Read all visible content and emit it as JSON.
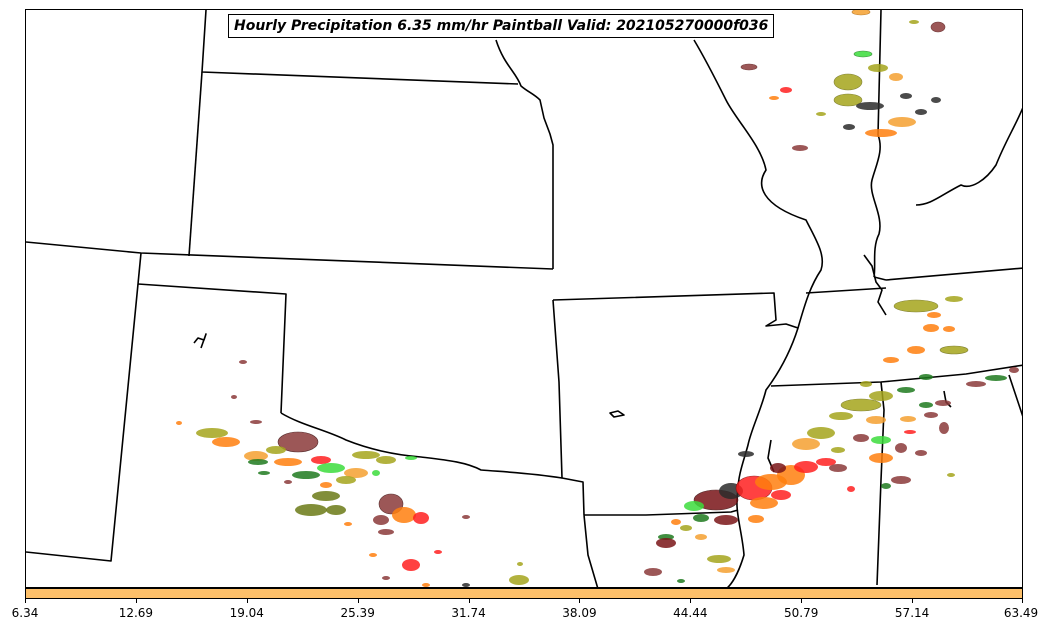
{
  "title": "Hourly Precipitation 6.35 mm/hr Paintball Valid: 202105270000f036",
  "colorbar": {
    "color": "#fdc06a",
    "ticks": [
      "6.34",
      "12.69",
      "19.04",
      "25.39",
      "31.74",
      "38.09",
      "44.44",
      "50.79",
      "57.14",
      "63.49"
    ]
  },
  "chart_data": {
    "type": "map",
    "map_type": "paintball",
    "region": "South-central United States (state boundaries)",
    "threshold_mm_per_hr": 6.35,
    "valid": "202105270000f036",
    "colorbar_range": [
      6.34,
      63.49
    ],
    "member_colors": [
      "#7a1518",
      "#c0392b",
      "#ff2020",
      "#ff7f0e",
      "#f5a030",
      "#a5a51c",
      "#6b7a16",
      "#3cdc3c",
      "#1e7a1e",
      "#2c2c2c",
      "#8b3a3a"
    ]
  }
}
